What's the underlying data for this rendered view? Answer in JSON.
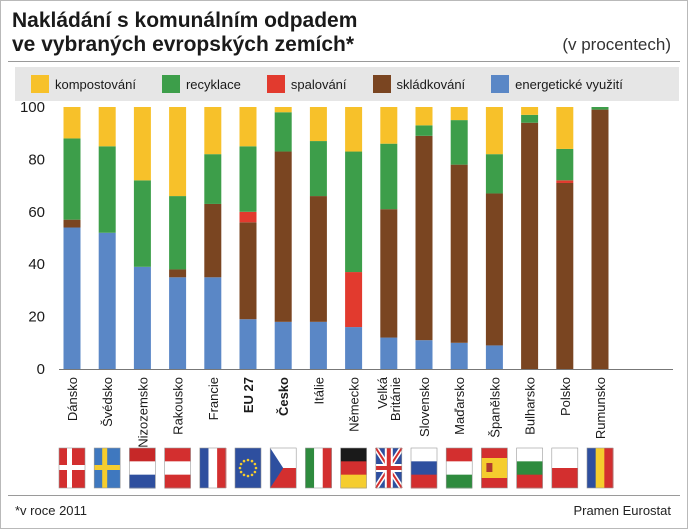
{
  "header": {
    "title_line1": "Nakládání s komunálním odpadem",
    "title_line2": "ve vybraných evropských zemích*",
    "unit_note": "(v procentech)"
  },
  "legend": [
    {
      "label": "kompostování",
      "color": "#f7c12a"
    },
    {
      "label": "recyklace",
      "color": "#3d9e4a"
    },
    {
      "label": "spalování",
      "color": "#e23a2e"
    },
    {
      "label": "skládkování",
      "color": "#7a4521"
    },
    {
      "label": "energetické využití",
      "color": "#5a87c6"
    }
  ],
  "footer": {
    "footnote": "*v roce 2011",
    "source": "Pramen Eurostat"
  },
  "chart_data": {
    "type": "bar",
    "stacked": true,
    "categories": [
      "Dánsko",
      "Švédsko",
      "Nizozemsko",
      "Rakousko",
      "Francie",
      "EU 27",
      "Česko",
      "Itálie",
      "Německo",
      "Velká Británie",
      "Slovensko",
      "Maďarsko",
      "Španělsko",
      "Bulharsko",
      "Polsko",
      "Rumunsko"
    ],
    "bold_categories": [
      "EU 27",
      "Česko"
    ],
    "yticks": [
      0,
      20,
      40,
      60,
      80,
      100
    ],
    "ylim": [
      0,
      100
    ],
    "grid": false,
    "series": [
      {
        "name": "energetické využití",
        "color": "#5a87c6",
        "values": [
          54,
          52,
          39,
          35,
          35,
          19,
          18,
          18,
          16,
          12,
          11,
          10,
          9,
          0,
          0,
          0
        ]
      },
      {
        "name": "skládkování",
        "color": "#7a4521",
        "values": [
          3,
          0,
          0,
          3,
          28,
          37,
          65,
          48,
          0,
          49,
          78,
          68,
          58,
          94,
          71,
          99
        ]
      },
      {
        "name": "spalování",
        "color": "#e23a2e",
        "values": [
          0,
          0,
          0,
          0,
          0,
          4,
          0,
          0,
          21,
          0,
          0,
          0,
          0,
          0,
          1,
          0
        ]
      },
      {
        "name": "recyklace",
        "color": "#3d9e4a",
        "values": [
          31,
          33,
          33,
          28,
          19,
          25,
          15,
          21,
          46,
          25,
          4,
          17,
          15,
          3,
          12,
          1
        ]
      },
      {
        "name": "kompostování",
        "color": "#f7c12a",
        "values": [
          12,
          15,
          28,
          34,
          18,
          15,
          2,
          13,
          17,
          14,
          7,
          5,
          18,
          3,
          16,
          0
        ]
      }
    ],
    "flags": [
      {
        "name": "dk-flag",
        "type": "nordic",
        "field": "#d32f2f",
        "cross": "#ffffff"
      },
      {
        "name": "se-flag",
        "type": "nordic",
        "field": "#3f78bf",
        "cross": "#f5cd2e"
      },
      {
        "name": "nl-flag",
        "type": "h3",
        "colors": [
          "#c62828",
          "#ffffff",
          "#2e4f9f"
        ]
      },
      {
        "name": "at-flag",
        "type": "h3",
        "colors": [
          "#d32f2f",
          "#ffffff",
          "#d32f2f"
        ]
      },
      {
        "name": "fr-flag",
        "type": "v3",
        "colors": [
          "#2e4f9f",
          "#ffffff",
          "#d32f2f"
        ]
      },
      {
        "name": "eu-flag",
        "type": "eu",
        "colors": [
          "#2e4f9f",
          "#f5cd2e"
        ]
      },
      {
        "name": "cz-flag",
        "type": "cz",
        "colors": [
          "#ffffff",
          "#d32f2f",
          "#2e4f9f"
        ]
      },
      {
        "name": "it-flag",
        "type": "v3",
        "colors": [
          "#2e8b3e",
          "#ffffff",
          "#d32f2f"
        ]
      },
      {
        "name": "de-flag",
        "type": "h3",
        "colors": [
          "#1a1a1a",
          "#d32f2f",
          "#f5cd2e"
        ]
      },
      {
        "name": "gb-flag",
        "type": "uk",
        "colors": [
          "#2e4f9f",
          "#ffffff",
          "#d32f2f"
        ]
      },
      {
        "name": "sk-flag",
        "type": "h3",
        "colors": [
          "#ffffff",
          "#2e4f9f",
          "#d32f2f"
        ]
      },
      {
        "name": "hu-flag",
        "type": "h3",
        "colors": [
          "#d32f2f",
          "#ffffff",
          "#2e8b3e"
        ]
      },
      {
        "name": "es-flag",
        "type": "es",
        "colors": [
          "#d32f2f",
          "#f5cd2e",
          "#d32f2f"
        ]
      },
      {
        "name": "bg-flag",
        "type": "h3",
        "colors": [
          "#ffffff",
          "#2e8b3e",
          "#d32f2f"
        ]
      },
      {
        "name": "pl-flag",
        "type": "h2",
        "colors": [
          "#ffffff",
          "#d32f2f"
        ]
      },
      {
        "name": "ro-flag",
        "type": "v3",
        "colors": [
          "#2e4f9f",
          "#f5cd2e",
          "#d32f2f"
        ]
      }
    ]
  }
}
